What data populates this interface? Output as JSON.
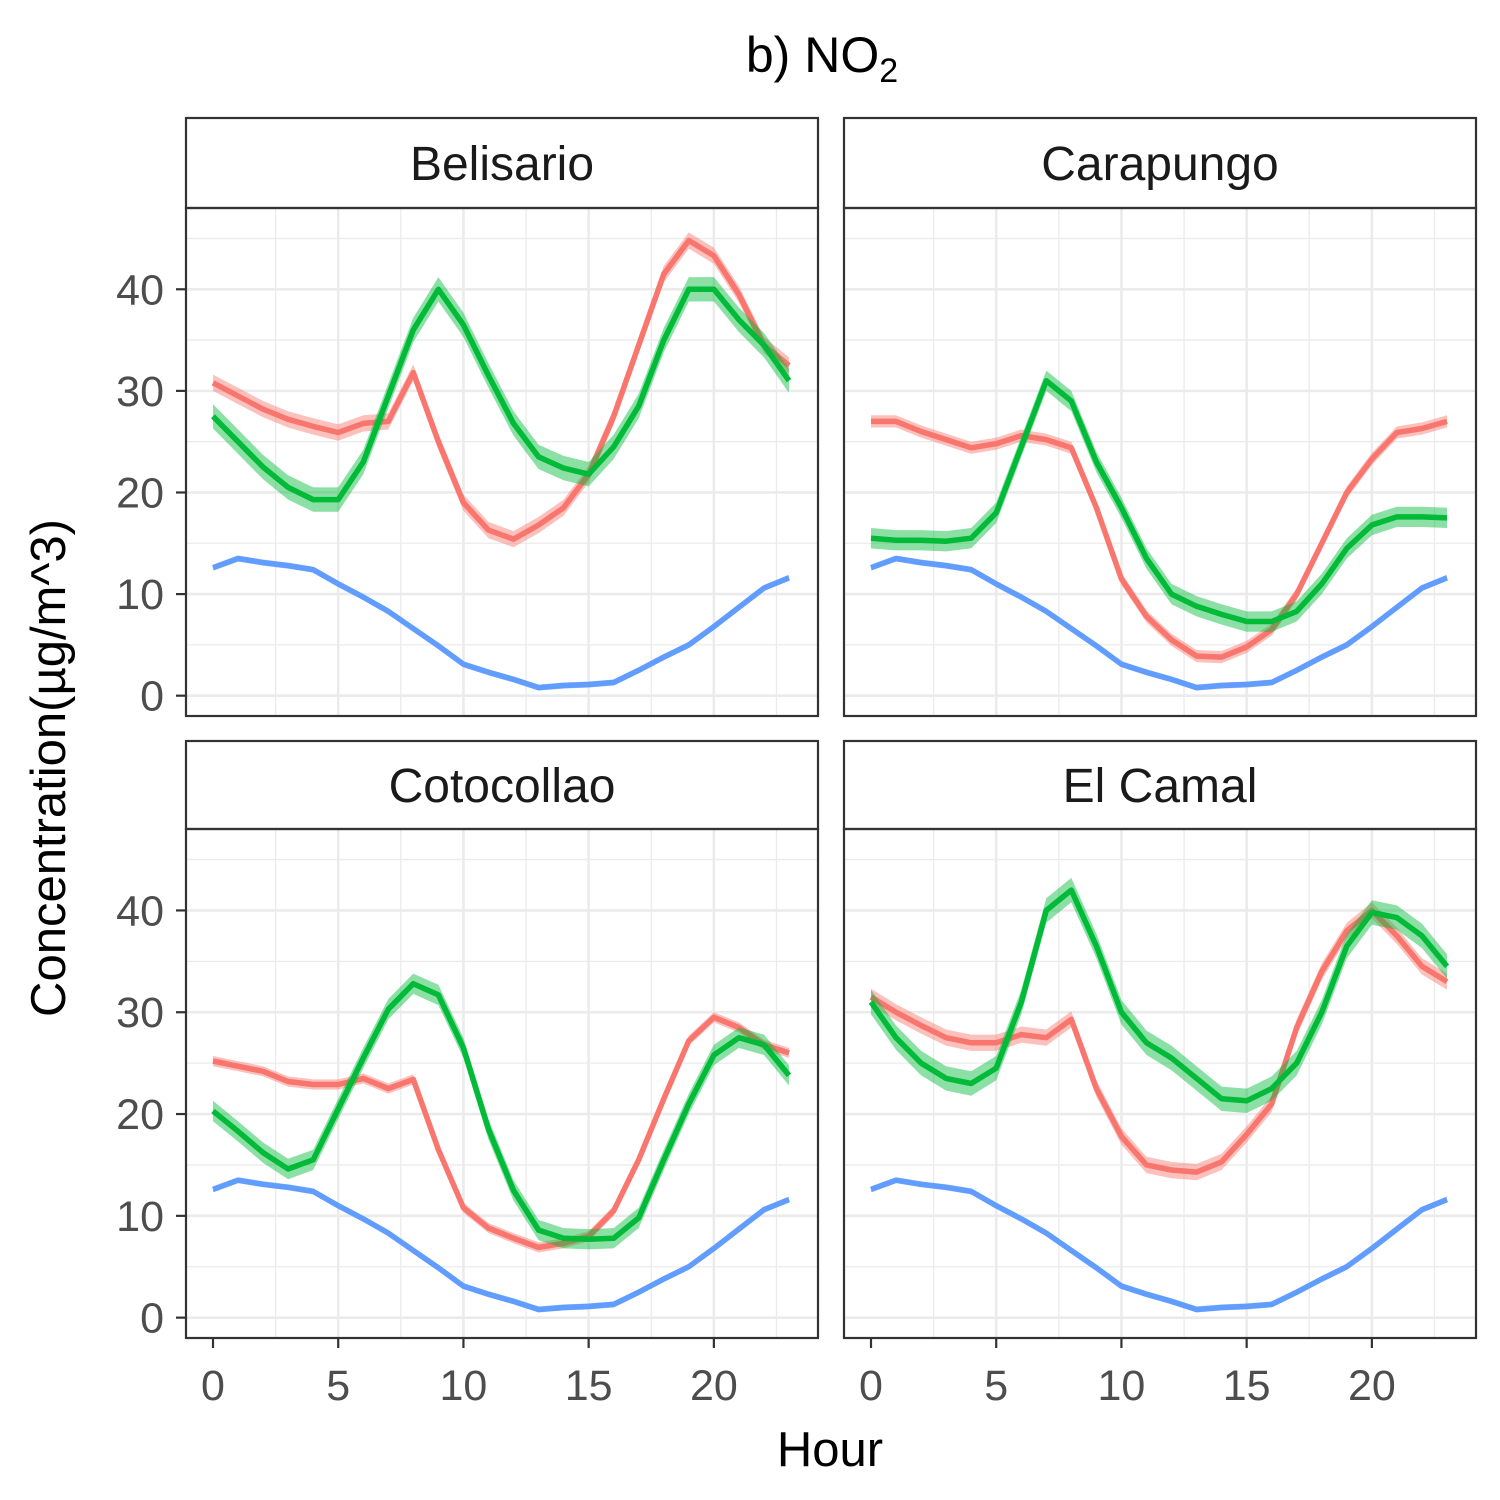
{
  "chart_data": {
    "type": "line",
    "title_prefix": "b) NO",
    "title_subscript": "2",
    "xlabel": "Hour",
    "ylabel": "Concentration(µg/m^3)",
    "xlim": [
      0,
      23
    ],
    "ylim": [
      -2,
      48
    ],
    "x_ticks": [
      0,
      5,
      10,
      15,
      20
    ],
    "y_ticks": [
      0,
      10,
      20,
      30,
      40
    ],
    "grid": true,
    "legend": "none",
    "x": [
      0,
      1,
      2,
      3,
      4,
      5,
      6,
      7,
      8,
      9,
      10,
      11,
      12,
      13,
      14,
      15,
      16,
      17,
      18,
      19,
      20,
      21,
      22,
      23
    ],
    "colors": {
      "red": "#F8766D",
      "green": "#00BA38",
      "blue": "#619CFF"
    },
    "panels": [
      {
        "name": "Belisario",
        "series": [
          {
            "color": "red",
            "band": 0.8,
            "values": [
              30.8,
              29.5,
              28.2,
              27.2,
              26.5,
              25.9,
              26.8,
              27.0,
              31.8,
              25.0,
              19.0,
              16.3,
              15.4,
              16.8,
              18.5,
              21.8,
              27.5,
              34.5,
              41.5,
              44.8,
              43.3,
              39.5,
              34.5,
              32.5
            ]
          },
          {
            "color": "green",
            "band": 1.2,
            "values": [
              27.5,
              25.0,
              22.5,
              20.5,
              19.3,
              19.3,
              23.0,
              29.5,
              36.0,
              40.0,
              36.5,
              31.5,
              26.8,
              23.5,
              22.4,
              21.8,
              24.5,
              28.5,
              35.0,
              40.0,
              40.0,
              37.0,
              34.5,
              31.0
            ]
          },
          {
            "color": "blue",
            "band": 0.3,
            "values": [
              12.6,
              13.5,
              13.1,
              12.8,
              12.4,
              11.0,
              9.7,
              8.3,
              6.6,
              4.9,
              3.1,
              2.3,
              1.6,
              0.8,
              1.0,
              1.1,
              1.3,
              2.5,
              3.8,
              5.0,
              6.8,
              8.7,
              10.6,
              11.6
            ]
          }
        ]
      },
      {
        "name": "Carapungo",
        "series": [
          {
            "color": "red",
            "band": 0.6,
            "values": [
              27.0,
              27.0,
              26.0,
              25.2,
              24.4,
              24.8,
              25.6,
              25.2,
              24.4,
              18.5,
              11.5,
              7.8,
              5.5,
              3.9,
              3.8,
              4.8,
              6.5,
              10.0,
              15.0,
              20.0,
              23.3,
              25.9,
              26.3,
              27.0
            ]
          },
          {
            "color": "green",
            "band": 1.0,
            "values": [
              15.5,
              15.3,
              15.3,
              15.2,
              15.5,
              18.0,
              24.5,
              31.0,
              29.0,
              23.0,
              18.5,
              13.5,
              10.0,
              8.8,
              8.0,
              7.3,
              7.3,
              8.3,
              11.0,
              14.5,
              16.8,
              17.6,
              17.6,
              17.5
            ]
          },
          {
            "color": "blue",
            "band": 0.3,
            "values": [
              12.6,
              13.5,
              13.1,
              12.8,
              12.4,
              11.0,
              9.7,
              8.3,
              6.6,
              4.9,
              3.1,
              2.3,
              1.6,
              0.8,
              1.0,
              1.1,
              1.3,
              2.5,
              3.8,
              5.0,
              6.8,
              8.7,
              10.6,
              11.6
            ]
          }
        ]
      },
      {
        "name": "Cotocollao",
        "series": [
          {
            "color": "red",
            "band": 0.5,
            "values": [
              25.2,
              24.7,
              24.2,
              23.2,
              22.9,
              22.9,
              23.5,
              22.5,
              23.4,
              16.5,
              10.8,
              8.8,
              7.8,
              6.9,
              7.3,
              8.0,
              10.5,
              15.5,
              21.5,
              27.2,
              29.5,
              28.5,
              26.8,
              26.0
            ]
          },
          {
            "color": "green",
            "band": 1.0,
            "values": [
              20.3,
              18.3,
              16.2,
              14.6,
              15.5,
              20.5,
              25.5,
              30.3,
              32.8,
              31.7,
              26.5,
              18.5,
              12.5,
              8.6,
              7.8,
              7.7,
              7.8,
              9.8,
              15.5,
              21.0,
              25.8,
              27.5,
              26.8,
              23.8
            ]
          },
          {
            "color": "blue",
            "band": 0.3,
            "values": [
              12.6,
              13.5,
              13.1,
              12.8,
              12.4,
              11.0,
              9.7,
              8.3,
              6.6,
              4.9,
              3.1,
              2.3,
              1.6,
              0.8,
              1.0,
              1.1,
              1.3,
              2.5,
              3.8,
              5.0,
              6.8,
              8.7,
              10.6,
              11.6
            ]
          }
        ]
      },
      {
        "name": "El Camal",
        "series": [
          {
            "color": "red",
            "band": 0.8,
            "values": [
              31.5,
              30.0,
              28.7,
              27.5,
              27.0,
              27.0,
              27.8,
              27.5,
              29.3,
              22.5,
              17.8,
              15.0,
              14.5,
              14.3,
              15.3,
              18.0,
              21.0,
              28.5,
              34.0,
              38.0,
              40.0,
              37.5,
              34.5,
              33.0
            ]
          },
          {
            "color": "green",
            "band": 1.2,
            "values": [
              31.0,
              27.5,
              25.0,
              23.5,
              23.0,
              24.5,
              31.0,
              40.0,
              42.0,
              36.5,
              30.0,
              27.0,
              25.5,
              23.5,
              21.5,
              21.3,
              22.5,
              25.0,
              30.0,
              36.5,
              39.8,
              39.3,
              37.5,
              34.5
            ]
          },
          {
            "color": "blue",
            "band": 0.3,
            "values": [
              12.6,
              13.5,
              13.1,
              12.8,
              12.4,
              11.0,
              9.7,
              8.3,
              6.6,
              4.9,
              3.1,
              2.3,
              1.6,
              0.8,
              1.0,
              1.1,
              1.3,
              2.5,
              3.8,
              5.0,
              6.8,
              8.7,
              10.6,
              11.6
            ]
          }
        ]
      }
    ]
  }
}
